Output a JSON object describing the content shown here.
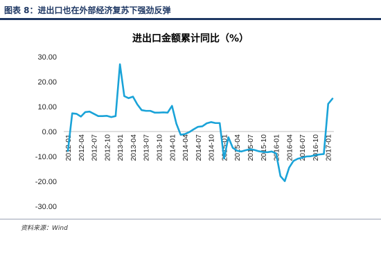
{
  "header": {
    "figure_label": "图表 8：进出口也在外部经济复苏下强劲反弹",
    "source": "资料来源：Wind"
  },
  "colors": {
    "line": "#1aa3d8",
    "header": "#1f3864",
    "axis": "#bfbfbf"
  },
  "chart_data": {
    "type": "line",
    "title": "进出口金额累计同比（%）",
    "ylim": [
      -30,
      30
    ],
    "y_ticks": [
      "30.00",
      "20.00",
      "10.00",
      "0.00",
      "-10.00",
      "-20.00",
      "-30.00"
    ],
    "y_tick_values": [
      30,
      20,
      10,
      0,
      -10,
      -20,
      -30
    ],
    "x_tick_labels": [
      "2012-01",
      "2012-04",
      "2012-07",
      "2012-10",
      "2013-01",
      "2013-04",
      "2013-07",
      "2013-10",
      "2014-01",
      "2014-04",
      "2014-07",
      "2014-10",
      "2015-01",
      "2015-04",
      "2015-07",
      "2015-10",
      "2016-01",
      "2016-04",
      "2016-07",
      "2016-10",
      "2017-01"
    ],
    "grid": false,
    "series": [
      {
        "x": [
          "2012-01",
          "2012-02",
          "2012-03",
          "2012-04",
          "2012-05",
          "2012-06",
          "2012-07",
          "2012-08",
          "2012-09",
          "2012-10",
          "2012-11",
          "2012-12",
          "2013-01",
          "2013-02",
          "2013-03",
          "2013-04",
          "2013-05",
          "2013-06",
          "2013-07",
          "2013-08",
          "2013-09",
          "2013-10",
          "2013-11",
          "2013-12",
          "2014-01",
          "2014-02",
          "2014-03",
          "2014-04",
          "2014-05",
          "2014-06",
          "2014-07",
          "2014-08",
          "2014-09",
          "2014-10",
          "2014-11",
          "2014-12",
          "2015-01",
          "2015-02",
          "2015-03",
          "2015-04",
          "2015-05",
          "2015-06",
          "2015-07",
          "2015-08",
          "2015-09",
          "2015-10",
          "2015-11",
          "2015-12",
          "2016-01",
          "2016-02",
          "2016-03",
          "2016-04",
          "2016-05",
          "2016-06",
          "2016-07",
          "2016-08",
          "2016-09",
          "2016-10",
          "2016-11",
          "2016-12",
          "2017-01",
          "2017-02"
        ],
        "values": [
          -7.8,
          7.3,
          7.1,
          6.0,
          7.8,
          8.0,
          7.1,
          6.2,
          6.2,
          6.3,
          5.8,
          6.2,
          27.0,
          14.2,
          13.4,
          14.0,
          10.9,
          8.6,
          8.3,
          8.3,
          7.6,
          7.6,
          7.7,
          7.6,
          10.3,
          3.2,
          -1.3,
          -1.0,
          -0.2,
          0.9,
          1.9,
          2.1,
          3.3,
          3.8,
          3.4,
          3.4,
          -10.8,
          -2.3,
          -6.5,
          -7.7,
          -8.0,
          -7.5,
          -7.1,
          -7.4,
          -7.9,
          -8.2,
          -8.3,
          -8.0,
          -8.8,
          -17.9,
          -19.9,
          -14.5,
          -11.8,
          -10.9,
          -10.5,
          -10.0,
          -9.9,
          -9.5,
          -9.2,
          -9.0,
          11.1,
          13.2
        ]
      }
    ]
  }
}
